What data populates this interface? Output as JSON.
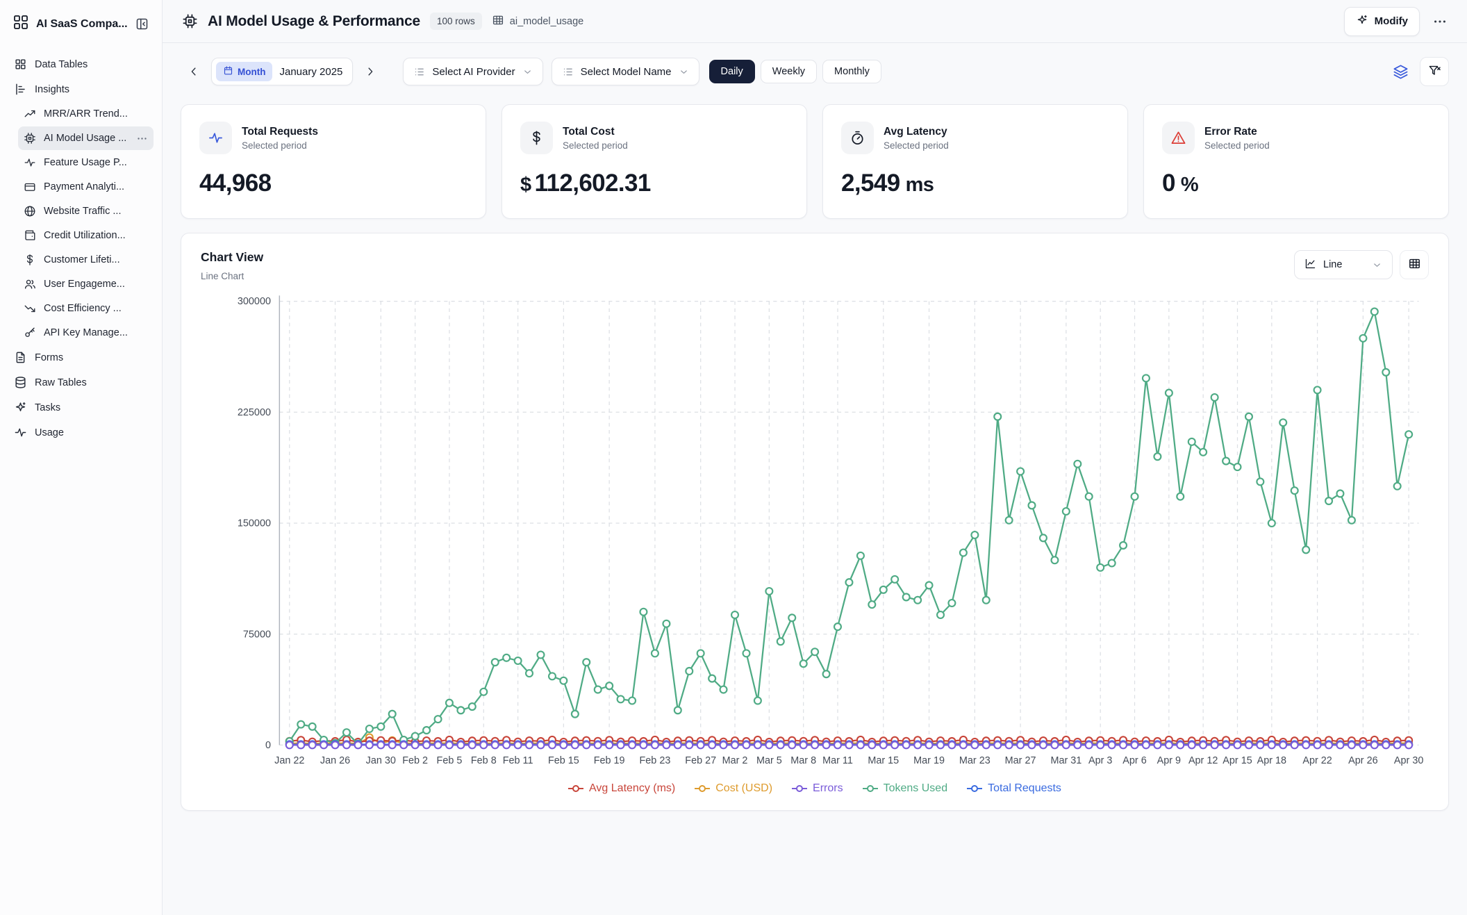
{
  "sidebar": {
    "app_name": "AI SaaS Compa...",
    "sections": [
      {
        "label": "Data Tables",
        "icon": "grid"
      },
      {
        "label": "Insights",
        "icon": "insights",
        "children": [
          {
            "label": "MRR/ARR Trend...",
            "icon": "trend-up"
          },
          {
            "label": "AI Model Usage ...",
            "icon": "cpu",
            "selected": true,
            "has_actions": true
          },
          {
            "label": "Feature Usage P...",
            "icon": "pulse"
          },
          {
            "label": "Payment Analyti...",
            "icon": "card"
          },
          {
            "label": "Website Traffic ...",
            "icon": "globe"
          },
          {
            "label": "Credit Utilization...",
            "icon": "wallet"
          },
          {
            "label": "Customer Lifeti...",
            "icon": "dollar"
          },
          {
            "label": "User Engageme...",
            "icon": "users"
          },
          {
            "label": "Cost Efficiency ...",
            "icon": "trend-down"
          },
          {
            "label": "API Key Manage...",
            "icon": "key"
          }
        ]
      },
      {
        "label": "Forms",
        "icon": "file"
      },
      {
        "label": "Raw Tables",
        "icon": "database"
      },
      {
        "label": "Tasks",
        "icon": "sparkle"
      },
      {
        "label": "Usage",
        "icon": "pulse"
      }
    ]
  },
  "header": {
    "title": "AI Model Usage & Performance",
    "rows_badge": "100 rows",
    "table_name": "ai_model_usage",
    "modify_label": "Modify"
  },
  "filters": {
    "month_label": "Month",
    "month_value": "January 2025",
    "provider_placeholder": "Select AI Provider",
    "model_placeholder": "Select Model Name",
    "granularity": [
      {
        "label": "Daily",
        "active": true
      },
      {
        "label": "Weekly",
        "active": false
      },
      {
        "label": "Monthly",
        "active": false
      }
    ]
  },
  "kpis": [
    {
      "icon": "pulse",
      "icon_color": "#3b5bdb",
      "title": "Total Requests",
      "subtitle": "Selected period",
      "prefix": "",
      "value": "44,968",
      "suffix": ""
    },
    {
      "icon": "dollar",
      "icon_color": "#141a26",
      "title": "Total Cost",
      "subtitle": "Selected period",
      "prefix": "$",
      "value": "112,602.31",
      "suffix": ""
    },
    {
      "icon": "timer",
      "icon_color": "#141a26",
      "title": "Avg Latency",
      "subtitle": "Selected period",
      "prefix": "",
      "value": "2,549",
      "suffix": "ms"
    },
    {
      "icon": "alert-triangle",
      "icon_color": "#dc3d36",
      "title": "Error Rate",
      "subtitle": "Selected period",
      "prefix": "",
      "value": "0",
      "suffix": "%"
    }
  ],
  "chart_view": {
    "title": "Chart View",
    "subtitle": "Line Chart",
    "chart_type_label": "Line"
  },
  "chart_data": {
    "type": "line",
    "points": 99,
    "x_range": [
      "Jan 22",
      "Apr 30"
    ],
    "x_tick_indices": [
      0,
      4,
      8,
      11,
      14,
      17,
      20,
      24,
      28,
      32,
      36,
      39,
      42,
      45,
      48,
      52,
      56,
      60,
      64,
      68,
      71,
      74,
      77,
      80,
      83,
      86,
      90,
      94,
      98
    ],
    "x_tick_labels": [
      "Jan 22",
      "Jan 26",
      "Jan 30",
      "Feb 2",
      "Feb 5",
      "Feb 8",
      "Feb 11",
      "Feb 15",
      "Feb 19",
      "Feb 23",
      "Feb 27",
      "Mar 2",
      "Mar 5",
      "Mar 8",
      "Mar 11",
      "Mar 15",
      "Mar 19",
      "Mar 23",
      "Mar 27",
      "Mar 31",
      "Apr 3",
      "Apr 6",
      "Apr 9",
      "Apr 12",
      "Apr 15",
      "Apr 18",
      "Apr 22",
      "Apr 26",
      "Apr 30"
    ],
    "ylim": [
      0,
      300000
    ],
    "y_ticks": [
      0,
      75000,
      150000,
      225000,
      300000
    ],
    "grid": true,
    "legend_position": "bottom",
    "series": [
      {
        "name": "Avg Latency (ms)",
        "color": "#c8453a",
        "render": "pattern",
        "base": 2500,
        "pattern": [
          140,
          860,
          -260,
          520,
          60,
          1040,
          -380,
          420,
          700
        ],
        "overrides": {}
      },
      {
        "name": "Cost (USD)",
        "color": "#de9b2d",
        "render": "pattern",
        "base": 1050,
        "pattern": [
          0,
          250,
          -120,
          180,
          60,
          300,
          -80,
          140,
          220
        ],
        "overrides": {
          "7": 5200,
          "9": 3100
        }
      },
      {
        "name": "Errors",
        "color": "#7a5cd9",
        "render": "constant",
        "value": 0
      },
      {
        "name": "Tokens Used",
        "color": "#4fab85",
        "render": "values",
        "values": [
          2500,
          14000,
          12500,
          3500,
          1200,
          8500,
          800,
          11000,
          12500,
          21000,
          3500,
          6000,
          10000,
          17500,
          28500,
          23500,
          26000,
          36000,
          56000,
          59000,
          57000,
          48500,
          61000,
          46500,
          43500,
          21000,
          56000,
          37500,
          40000,
          31000,
          30000,
          90000,
          62000,
          82000,
          23500,
          50000,
          62000,
          45000,
          37500,
          88000,
          62000,
          30000,
          104000,
          70000,
          86000,
          55000,
          63000,
          48000,
          80000,
          110000,
          128000,
          95000,
          105000,
          112000,
          100000,
          98000,
          108000,
          88000,
          96000,
          130000,
          142000,
          98000,
          222000,
          152000,
          185000,
          162000,
          140000,
          125000,
          158000,
          190000,
          168000,
          120000,
          123000,
          135000,
          168000,
          248000,
          195000,
          238000,
          168000,
          205000,
          198000,
          235000,
          192000,
          188000,
          222000,
          178000,
          150000,
          218000,
          172000,
          132000,
          240000,
          165000,
          170000,
          152000,
          275000,
          293000,
          252000,
          175000,
          210000
        ]
      },
      {
        "name": "Total Requests",
        "color": "#3a6be0",
        "render": "constant",
        "value": 454
      }
    ]
  }
}
